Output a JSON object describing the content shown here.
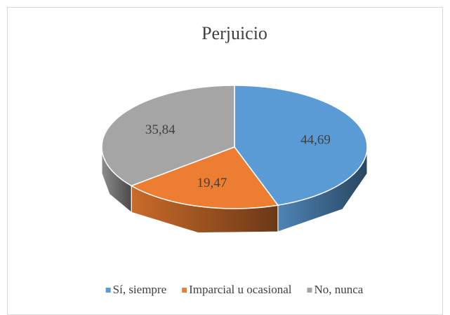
{
  "chart_data": {
    "type": "pie",
    "title": "Perjuicio",
    "categories": [
      "Sí, siempre",
      "Imparcial u ocasional",
      "No, nunca"
    ],
    "values": [
      44.69,
      19.47,
      35.84
    ],
    "value_labels": [
      "44,69",
      "19,47",
      "35,84"
    ],
    "colors": [
      "#5b9bd5",
      "#ed7d31",
      "#a5a5a5"
    ],
    "legend": "bottom"
  }
}
